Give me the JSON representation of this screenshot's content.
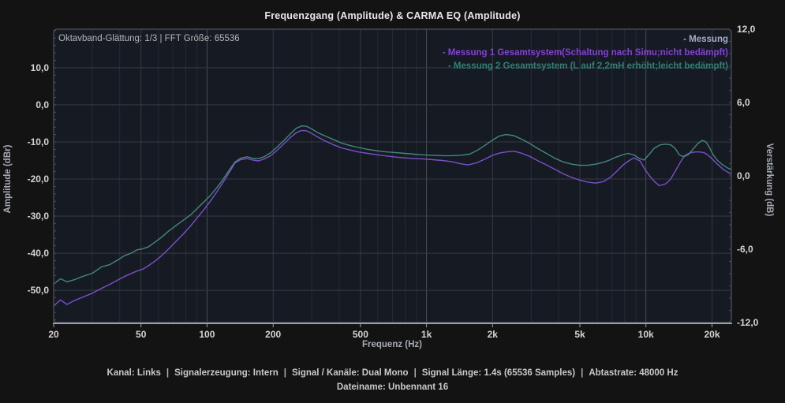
{
  "overlay": {
    "smoothing_fft": "Oktavband-Glättung: 1/3 | FFT Größe: 65536"
  },
  "status": {
    "items": [
      "Kanal: Links",
      "Signalerzeugung: Intern",
      "Signal / Kanäle: Dual Mono",
      "Signal Länge: 1.4s (65536 Samples)",
      "Abtastrate: 48000 Hz"
    ],
    "filename": "Dateiname: Unbennant 16"
  },
  "colors": {
    "plot_bg": "#161a23",
    "grid_minor": "#262a33",
    "grid_labeled": "#343841",
    "grid_decade": "#4a4e56",
    "grid_horizontal": "#363a43",
    "plot_border": "#5c6169",
    "axis_line": "#9b9fa5",
    "tick_text": "#d4d4d4"
  },
  "chart_data": {
    "type": "line",
    "title": "Frequenzgang (Amplitude) & CARMA EQ (Amplitude)",
    "xlabel": "Frequenz (Hz)",
    "ylabel_left": "Amplitude (dBr)",
    "ylabel_right": "Verstärkung (dB)",
    "xscale": "log",
    "xlim": [
      20,
      24500
    ],
    "ylim_left": [
      -58.7,
      20.4
    ],
    "ylim_right": [
      -12,
      12
    ],
    "grid": true,
    "legend_position": "top-right",
    "x_ticks": [
      {
        "v": 20,
        "label": "20"
      },
      {
        "v": 50,
        "label": "50"
      },
      {
        "v": 100,
        "label": "100"
      },
      {
        "v": 200,
        "label": "200"
      },
      {
        "v": 500,
        "label": "500"
      },
      {
        "v": 1000,
        "label": "1k"
      },
      {
        "v": 2000,
        "label": "2k"
      },
      {
        "v": 5000,
        "label": "5k"
      },
      {
        "v": 10000,
        "label": "10k"
      },
      {
        "v": 20000,
        "label": "20k"
      }
    ],
    "y_ticks_left": [
      {
        "v": 10,
        "label": "10,0"
      },
      {
        "v": 0,
        "label": "0,0"
      },
      {
        "v": -10,
        "label": "-10,0"
      },
      {
        "v": -20,
        "label": "-20,0"
      },
      {
        "v": -30,
        "label": "-30,0"
      },
      {
        "v": -40,
        "label": "-40,0"
      },
      {
        "v": -50,
        "label": "-50,0"
      }
    ],
    "y_ticks_right": [
      {
        "v": 12,
        "label": "12,0"
      },
      {
        "v": 6,
        "label": "6,0"
      },
      {
        "v": 0,
        "label": "0,0"
      },
      {
        "v": -6,
        "label": "-6,0"
      },
      {
        "v": -12,
        "label": "-12,0"
      }
    ],
    "series": [
      {
        "label": "- Messung",
        "color": "#a7abc6",
        "points": []
      },
      {
        "label": "- Messung 1 Gesamtsystem(Schaltung nach Simu;nicht bedämpft)",
        "color": "#8440d6",
        "curve_color": "#7b4fce",
        "points": [
          [
            20,
            -54.2
          ],
          [
            21.5,
            -52.6
          ],
          [
            23,
            -53.8
          ],
          [
            25,
            -52.7
          ],
          [
            27,
            -51.9
          ],
          [
            30,
            -50.8
          ],
          [
            33,
            -49.5
          ],
          [
            36,
            -48.4
          ],
          [
            39,
            -47.3
          ],
          [
            42,
            -46.3
          ],
          [
            45,
            -45.5
          ],
          [
            48,
            -44.8
          ],
          [
            51,
            -44.3
          ],
          [
            54,
            -43.4
          ],
          [
            58,
            -42.1
          ],
          [
            62,
            -40.7
          ],
          [
            67,
            -38.8
          ],
          [
            72,
            -36.9
          ],
          [
            78,
            -34.8
          ],
          [
            84,
            -32.7
          ],
          [
            90,
            -30.5
          ],
          [
            97,
            -28.2
          ],
          [
            104,
            -25.8
          ],
          [
            111,
            -23.4
          ],
          [
            118,
            -21.0
          ],
          [
            126,
            -18.3
          ],
          [
            134,
            -15.7
          ],
          [
            142,
            -14.8
          ],
          [
            152,
            -14.5
          ],
          [
            162,
            -14.9
          ],
          [
            172,
            -15.1
          ],
          [
            182,
            -14.6
          ],
          [
            195,
            -13.7
          ],
          [
            210,
            -12.1
          ],
          [
            225,
            -10.4
          ],
          [
            240,
            -8.8
          ],
          [
            255,
            -7.5
          ],
          [
            270,
            -6.9
          ],
          [
            285,
            -7.0
          ],
          [
            300,
            -7.7
          ],
          [
            320,
            -8.7
          ],
          [
            345,
            -9.7
          ],
          [
            375,
            -10.7
          ],
          [
            410,
            -11.6
          ],
          [
            450,
            -12.2
          ],
          [
            490,
            -12.7
          ],
          [
            540,
            -13.1
          ],
          [
            600,
            -13.5
          ],
          [
            660,
            -13.8
          ],
          [
            730,
            -14.1
          ],
          [
            800,
            -14.3
          ],
          [
            880,
            -14.5
          ],
          [
            970,
            -14.6
          ],
          [
            1070,
            -14.8
          ],
          [
            1180,
            -15.0
          ],
          [
            1300,
            -15.3
          ],
          [
            1430,
            -15.9
          ],
          [
            1550,
            -16.2
          ],
          [
            1700,
            -15.6
          ],
          [
            1850,
            -14.6
          ],
          [
            2000,
            -13.6
          ],
          [
            2150,
            -13.0
          ],
          [
            2300,
            -12.7
          ],
          [
            2500,
            -12.5
          ],
          [
            2700,
            -13.0
          ],
          [
            2950,
            -13.9
          ],
          [
            3200,
            -15.0
          ],
          [
            3500,
            -16.1
          ],
          [
            3850,
            -17.4
          ],
          [
            4200,
            -18.6
          ],
          [
            4600,
            -19.6
          ],
          [
            5000,
            -20.3
          ],
          [
            5400,
            -20.8
          ],
          [
            5900,
            -21.1
          ],
          [
            6400,
            -20.7
          ],
          [
            6900,
            -19.5
          ],
          [
            7300,
            -18.1
          ],
          [
            7900,
            -16.1
          ],
          [
            8400,
            -15.0
          ],
          [
            8800,
            -14.3
          ],
          [
            9400,
            -15.1
          ],
          [
            9900,
            -17.4
          ],
          [
            10400,
            -19.2
          ],
          [
            10900,
            -20.6
          ],
          [
            11500,
            -21.8
          ],
          [
            12300,
            -21.3
          ],
          [
            12900,
            -20.2
          ],
          [
            13600,
            -17.9
          ],
          [
            14300,
            -15.6
          ],
          [
            15000,
            -13.7
          ],
          [
            15800,
            -13.0
          ],
          [
            16700,
            -12.7
          ],
          [
            17600,
            -12.7
          ],
          [
            18400,
            -12.9
          ],
          [
            19100,
            -13.5
          ],
          [
            19900,
            -14.4
          ],
          [
            21000,
            -15.8
          ],
          [
            22400,
            -17.3
          ],
          [
            23500,
            -18.1
          ],
          [
            24400,
            -18.6
          ]
        ]
      },
      {
        "label": "- Messung 2 Gesamtsystem (L auf 2,2mH erhöht;leicht bedämpft)",
        "color": "#2f8272",
        "curve_color": "#42897b",
        "points": [
          [
            20,
            -48.3
          ],
          [
            21.5,
            -46.9
          ],
          [
            23,
            -47.7
          ],
          [
            25,
            -47.1
          ],
          [
            27,
            -46.3
          ],
          [
            30,
            -45.4
          ],
          [
            33,
            -43.7
          ],
          [
            36,
            -43.1
          ],
          [
            39,
            -41.9
          ],
          [
            42,
            -40.7
          ],
          [
            45,
            -40.0
          ],
          [
            48,
            -39.1
          ],
          [
            51,
            -38.8
          ],
          [
            54,
            -38.3
          ],
          [
            58,
            -37.0
          ],
          [
            62,
            -35.7
          ],
          [
            67,
            -34.0
          ],
          [
            72,
            -32.6
          ],
          [
            78,
            -31.1
          ],
          [
            84,
            -29.7
          ],
          [
            90,
            -28.0
          ],
          [
            97,
            -26.1
          ],
          [
            104,
            -24.3
          ],
          [
            111,
            -22.3
          ],
          [
            118,
            -20.2
          ],
          [
            126,
            -17.7
          ],
          [
            134,
            -15.4
          ],
          [
            142,
            -14.4
          ],
          [
            152,
            -14.0
          ],
          [
            162,
            -14.4
          ],
          [
            172,
            -14.5
          ],
          [
            182,
            -14.0
          ],
          [
            195,
            -12.9
          ],
          [
            210,
            -11.2
          ],
          [
            225,
            -9.5
          ],
          [
            240,
            -7.8
          ],
          [
            255,
            -6.3
          ],
          [
            270,
            -5.7
          ],
          [
            285,
            -5.8
          ],
          [
            300,
            -6.5
          ],
          [
            320,
            -7.5
          ],
          [
            345,
            -8.4
          ],
          [
            375,
            -9.3
          ],
          [
            410,
            -10.3
          ],
          [
            450,
            -11.0
          ],
          [
            490,
            -11.5
          ],
          [
            540,
            -12.0
          ],
          [
            600,
            -12.4
          ],
          [
            660,
            -12.7
          ],
          [
            730,
            -12.9
          ],
          [
            800,
            -13.1
          ],
          [
            880,
            -13.3
          ],
          [
            970,
            -13.5
          ],
          [
            1070,
            -13.6
          ],
          [
            1180,
            -13.7
          ],
          [
            1300,
            -13.7
          ],
          [
            1430,
            -13.6
          ],
          [
            1570,
            -13.3
          ],
          [
            1700,
            -12.3
          ],
          [
            1850,
            -10.9
          ],
          [
            2000,
            -9.5
          ],
          [
            2150,
            -8.4
          ],
          [
            2300,
            -8.0
          ],
          [
            2500,
            -8.3
          ],
          [
            2700,
            -9.2
          ],
          [
            2950,
            -10.4
          ],
          [
            3200,
            -11.7
          ],
          [
            3500,
            -13.0
          ],
          [
            3850,
            -14.4
          ],
          [
            4200,
            -15.4
          ],
          [
            4600,
            -16.0
          ],
          [
            5000,
            -16.3
          ],
          [
            5400,
            -16.3
          ],
          [
            5900,
            -16.0
          ],
          [
            6400,
            -15.5
          ],
          [
            6900,
            -14.8
          ],
          [
            7300,
            -14.1
          ],
          [
            7900,
            -13.4
          ],
          [
            8300,
            -13.1
          ],
          [
            8800,
            -13.5
          ],
          [
            9300,
            -14.4
          ],
          [
            9800,
            -14.9
          ],
          [
            10300,
            -13.5
          ],
          [
            10900,
            -11.7
          ],
          [
            11600,
            -10.8
          ],
          [
            12300,
            -10.6
          ],
          [
            13000,
            -10.8
          ],
          [
            13600,
            -11.8
          ],
          [
            14200,
            -13.5
          ],
          [
            14900,
            -14.0
          ],
          [
            15600,
            -13.4
          ],
          [
            16400,
            -11.9
          ],
          [
            17200,
            -10.5
          ],
          [
            18000,
            -9.6
          ],
          [
            18700,
            -9.9
          ],
          [
            19400,
            -11.3
          ],
          [
            20200,
            -13.4
          ],
          [
            21200,
            -15.0
          ],
          [
            22400,
            -16.2
          ],
          [
            23500,
            -17.0
          ],
          [
            24400,
            -17.4
          ]
        ]
      }
    ]
  }
}
